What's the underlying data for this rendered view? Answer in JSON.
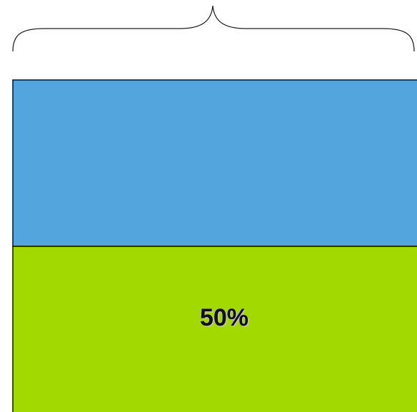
{
  "blocks": [
    {
      "color": "#52a5dd"
    },
    {
      "color": "#a2d900",
      "label": "50%"
    }
  ]
}
